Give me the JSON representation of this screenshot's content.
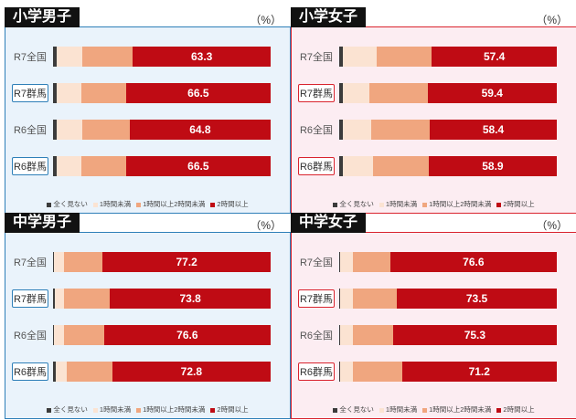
{
  "colors": {
    "none": "#3b3b3b",
    "lt1": "#fbe3d2",
    "h1to2": "#f0a67f",
    "ge2": "#bf0b14",
    "boy_border": "#2e7fb8",
    "boy_bg": "#eaf3fb",
    "girl_border": "#d9232e",
    "girl_bg": "#fcedf2"
  },
  "legend": [
    "全く見ない",
    "1時間未満",
    "1時間以上2時間未満",
    "2時間以上"
  ],
  "chart_data": [
    {
      "type": "bar",
      "title": "小学男子",
      "unit": "（%）",
      "categories": [
        "R7全国",
        "R7群馬",
        "R6全国",
        "R6群馬"
      ],
      "highlight": [
        false,
        true,
        false,
        true
      ],
      "series": [
        {
          "name": "全く見ない",
          "values": [
            1.5,
            1.6,
            1.5,
            1.6
          ]
        },
        {
          "name": "1時間未満",
          "values": [
            11.8,
            11.3,
            11.9,
            11.3
          ]
        },
        {
          "name": "1時間以上2時間未満",
          "values": [
            23.4,
            20.6,
            21.8,
            20.6
          ]
        },
        {
          "name": "2時間以上",
          "values": [
            63.3,
            66.5,
            64.8,
            66.5
          ]
        }
      ],
      "xlim": [
        0,
        100
      ]
    },
    {
      "type": "bar",
      "title": "小学女子",
      "unit": "（%）",
      "categories": [
        "R7全国",
        "R7群馬",
        "R6全国",
        "R6群馬"
      ],
      "highlight": [
        false,
        true,
        false,
        true
      ],
      "series": [
        {
          "name": "全く見ない",
          "values": [
            1.6,
            1.6,
            1.5,
            1.6
          ]
        },
        {
          "name": "1時間未満",
          "values": [
            15.8,
            12.1,
            13.2,
            14.0
          ]
        },
        {
          "name": "1時間以上2時間未満",
          "values": [
            25.2,
            26.9,
            26.9,
            25.5
          ]
        },
        {
          "name": "2時間以上",
          "values": [
            57.4,
            59.4,
            58.4,
            58.9
          ]
        }
      ],
      "xlim": [
        0,
        100
      ]
    },
    {
      "type": "bar",
      "title": "中学男子",
      "unit": "（%）",
      "categories": [
        "R7全国",
        "R7群馬",
        "R6全国",
        "R6群馬"
      ],
      "highlight": [
        false,
        true,
        false,
        true
      ],
      "series": [
        {
          "name": "全く見ない",
          "values": [
            0.6,
            1.0,
            0.6,
            1.2
          ]
        },
        {
          "name": "1時間未満",
          "values": [
            4.6,
            4.0,
            4.6,
            5.0
          ]
        },
        {
          "name": "1時間以上2時間未満",
          "values": [
            17.6,
            21.2,
            18.2,
            21.0
          ]
        },
        {
          "name": "2時間以上",
          "values": [
            77.2,
            73.8,
            76.6,
            72.8
          ]
        }
      ],
      "xlim": [
        0,
        100
      ]
    },
    {
      "type": "bar",
      "title": "中学女子",
      "unit": "（%）",
      "categories": [
        "R7全国",
        "R7群馬",
        "R6全国",
        "R6群馬"
      ],
      "highlight": [
        false,
        true,
        false,
        true
      ],
      "series": [
        {
          "name": "全く見ない",
          "values": [
            0.3,
            0.6,
            0.4,
            0.6
          ]
        },
        {
          "name": "1時間未満",
          "values": [
            5.9,
            5.9,
            5.9,
            5.7
          ]
        },
        {
          "name": "1時間以上2時間未満",
          "values": [
            17.2,
            20.0,
            18.4,
            22.5
          ]
        },
        {
          "name": "2時間以上",
          "values": [
            76.6,
            73.5,
            75.3,
            71.2
          ]
        }
      ],
      "xlim": [
        0,
        100
      ]
    }
  ]
}
